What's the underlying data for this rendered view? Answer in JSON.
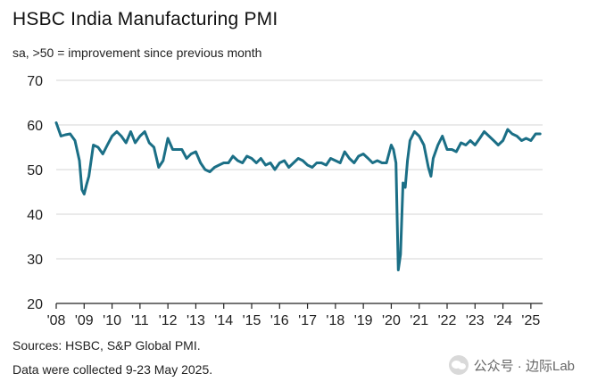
{
  "header": {
    "title": "HSBC India Manufacturing PMI",
    "subtitle": "sa, >50 = improvement since previous month"
  },
  "footer": {
    "sources": "Sources: HSBC, S&P Global PMI.",
    "collected": "Data were collected 9-23 May 2025."
  },
  "watermark": {
    "text": "公众号 · 边际Lab",
    "icon": "chat-bubbles-icon"
  },
  "colors": {
    "line": "#1b6f86",
    "grid": "#d6d6d6",
    "axis": "#222222"
  },
  "chart_data": {
    "type": "line",
    "title": "HSBC India Manufacturing PMI",
    "subtitle": "sa, >50 = improvement since previous month",
    "xlabel": "",
    "ylabel": "",
    "ylim": [
      20,
      70
    ],
    "yticks": [
      20,
      30,
      40,
      50,
      60,
      70
    ],
    "xlim": [
      2008.0,
      2025.42
    ],
    "xticks": [
      {
        "x": 2008,
        "label": "'08"
      },
      {
        "x": 2009,
        "label": "'09"
      },
      {
        "x": 2010,
        "label": "'10"
      },
      {
        "x": 2011,
        "label": "'11"
      },
      {
        "x": 2012,
        "label": "'12"
      },
      {
        "x": 2013,
        "label": "'13"
      },
      {
        "x": 2014,
        "label": "'14"
      },
      {
        "x": 2015,
        "label": "'15"
      },
      {
        "x": 2016,
        "label": "'16"
      },
      {
        "x": 2017,
        "label": "'17"
      },
      {
        "x": 2018,
        "label": "'18"
      },
      {
        "x": 2019,
        "label": "'19"
      },
      {
        "x": 2020,
        "label": "'20"
      },
      {
        "x": 2021,
        "label": "'21"
      },
      {
        "x": 2022,
        "label": "'22"
      },
      {
        "x": 2023,
        "label": "'23"
      },
      {
        "x": 2024,
        "label": "'24"
      },
      {
        "x": 2025,
        "label": "'25"
      }
    ],
    "grid": true,
    "series": [
      {
        "name": "HSBC India Manufacturing PMI",
        "x": [
          2008.0,
          2008.17,
          2008.33,
          2008.5,
          2008.67,
          2008.83,
          2008.92,
          2009.0,
          2009.08,
          2009.17,
          2009.33,
          2009.5,
          2009.67,
          2009.83,
          2010.0,
          2010.17,
          2010.33,
          2010.5,
          2010.67,
          2010.83,
          2011.0,
          2011.17,
          2011.33,
          2011.5,
          2011.67,
          2011.83,
          2012.0,
          2012.17,
          2012.33,
          2012.5,
          2012.67,
          2012.83,
          2013.0,
          2013.17,
          2013.33,
          2013.5,
          2013.67,
          2013.83,
          2014.0,
          2014.17,
          2014.33,
          2014.5,
          2014.67,
          2014.83,
          2015.0,
          2015.17,
          2015.33,
          2015.5,
          2015.67,
          2015.83,
          2016.0,
          2016.17,
          2016.33,
          2016.5,
          2016.67,
          2016.83,
          2017.0,
          2017.17,
          2017.33,
          2017.5,
          2017.67,
          2017.83,
          2018.0,
          2018.17,
          2018.33,
          2018.5,
          2018.67,
          2018.83,
          2019.0,
          2019.17,
          2019.33,
          2019.5,
          2019.67,
          2019.83,
          2020.0,
          2020.08,
          2020.17,
          2020.25,
          2020.33,
          2020.42,
          2020.5,
          2020.58,
          2020.67,
          2020.83,
          2021.0,
          2021.17,
          2021.33,
          2021.42,
          2021.5,
          2021.67,
          2021.83,
          2022.0,
          2022.17,
          2022.33,
          2022.5,
          2022.67,
          2022.83,
          2023.0,
          2023.17,
          2023.33,
          2023.5,
          2023.67,
          2023.83,
          2024.0,
          2024.17,
          2024.33,
          2024.5,
          2024.67,
          2024.83,
          2025.0,
          2025.17,
          2025.33
        ],
        "values": [
          60.5,
          57.5,
          57.8,
          58.0,
          56.5,
          52.0,
          45.5,
          44.5,
          46.5,
          48.5,
          55.5,
          55.0,
          53.5,
          55.5,
          57.5,
          58.5,
          57.5,
          56.0,
          58.5,
          56.0,
          57.5,
          58.5,
          56.0,
          55.0,
          50.5,
          52.0,
          57.0,
          54.5,
          54.5,
          54.5,
          52.5,
          53.5,
          54.0,
          51.5,
          50.0,
          49.5,
          50.5,
          51.0,
          51.5,
          51.5,
          53.0,
          52.0,
          51.5,
          53.0,
          52.5,
          51.5,
          52.5,
          51.0,
          51.5,
          50.0,
          51.5,
          52.0,
          50.5,
          51.5,
          52.5,
          52.0,
          51.0,
          50.5,
          51.5,
          51.5,
          51.0,
          52.5,
          52.0,
          51.5,
          54.0,
          52.5,
          51.5,
          53.0,
          53.5,
          52.5,
          51.5,
          52.0,
          51.5,
          51.5,
          55.5,
          54.5,
          51.5,
          27.5,
          31.0,
          47.0,
          46.0,
          52.0,
          56.5,
          58.5,
          57.5,
          55.5,
          50.5,
          48.5,
          52.5,
          55.5,
          57.5,
          54.5,
          54.5,
          54.0,
          56.0,
          55.5,
          56.5,
          55.5,
          57.0,
          58.5,
          57.5,
          56.5,
          55.5,
          56.5,
          59.0,
          58.0,
          57.5,
          56.5,
          57.0,
          56.5,
          58.0,
          58.0
        ]
      }
    ]
  }
}
